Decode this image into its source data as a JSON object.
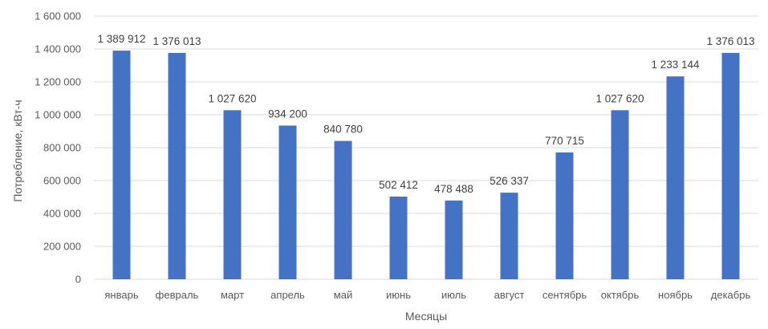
{
  "chart_data": {
    "type": "bar",
    "categories": [
      "январь",
      "февраль",
      "март",
      "апрель",
      "май",
      "июнь",
      "июль",
      "август",
      "сентябрь",
      "октябрь",
      "ноябрь",
      "декабрь"
    ],
    "values": [
      1389912,
      1376013,
      1027620,
      934200,
      840780,
      502412,
      478488,
      526337,
      770715,
      1027620,
      1233144,
      1376013
    ],
    "value_labels": [
      "1 389 912",
      "1 376 013",
      "1 027 620",
      "934 200",
      "840 780",
      "502 412",
      "478 488",
      "526 337",
      "770 715",
      "1 027 620",
      "1 233 144",
      "1 376 013"
    ],
    "title": "",
    "xlabel": "Месяцы",
    "ylabel": "Потребление, кВт-ч",
    "ylim": [
      0,
      1600000
    ],
    "yticks": [
      0,
      200000,
      400000,
      600000,
      800000,
      1000000,
      1200000,
      1400000,
      1600000
    ],
    "ytick_labels": [
      "0",
      "200 000",
      "400 000",
      "600 000",
      "800 000",
      "1 000 000",
      "1 200 000",
      "1 400 000",
      "1 600 000"
    ],
    "grid": true,
    "legend": "none",
    "bar_color": "#4472c4"
  }
}
